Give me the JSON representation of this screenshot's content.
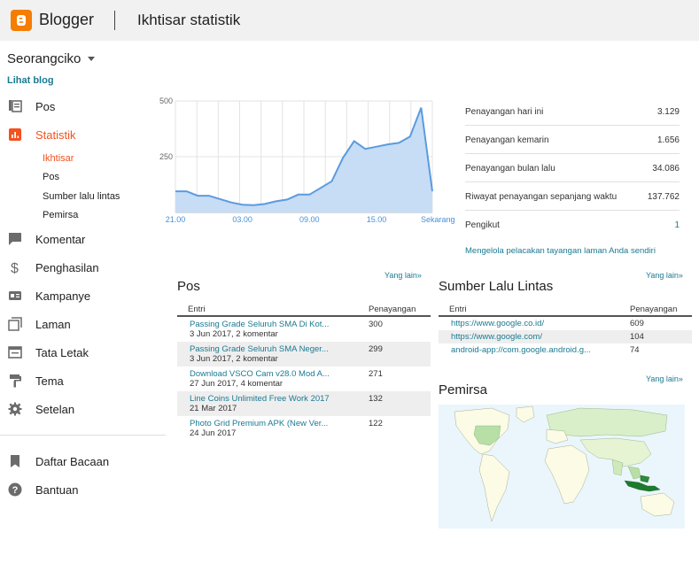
{
  "header": {
    "brand": "Blogger",
    "title": "Ikhtisar statistik"
  },
  "sidebar": {
    "blog_name": "Seorangciko",
    "view_blog": "Lihat blog",
    "items": [
      {
        "label": "Pos",
        "icon": "posts-icon"
      },
      {
        "label": "Statistik",
        "icon": "stats-icon"
      },
      {
        "label": "Komentar",
        "icon": "comment-icon"
      },
      {
        "label": "Penghasilan",
        "icon": "dollar-icon"
      },
      {
        "label": "Kampanye",
        "icon": "campaign-icon"
      },
      {
        "label": "Laman",
        "icon": "pages-icon"
      },
      {
        "label": "Tata Letak",
        "icon": "layout-icon"
      },
      {
        "label": "Tema",
        "icon": "theme-icon"
      },
      {
        "label": "Setelan",
        "icon": "gear-icon"
      },
      {
        "label": "Daftar Bacaan",
        "icon": "bookmark-icon"
      },
      {
        "label": "Bantuan",
        "icon": "help-icon"
      }
    ],
    "sub_items": [
      "Ikhtisar",
      "Pos",
      "Sumber lalu lintas",
      "Pemirsa"
    ]
  },
  "chart_data": {
    "type": "area",
    "x_tick_labels": [
      "21.00",
      "03.00",
      "09.00",
      "15.00",
      "Sekarang"
    ],
    "y_ticks": [
      250,
      500
    ],
    "ylim": [
      0,
      500
    ],
    "values": [
      95,
      95,
      75,
      75,
      60,
      45,
      35,
      33,
      38,
      50,
      58,
      80,
      80,
      110,
      140,
      245,
      320,
      285,
      295,
      305,
      312,
      340,
      470,
      95
    ],
    "color": "#5b9bdf",
    "fill": "#c7dcf5"
  },
  "stats": [
    {
      "label": "Penayangan hari ini",
      "value": "3.129"
    },
    {
      "label": "Penayangan kemarin",
      "value": "1.656"
    },
    {
      "label": "Penayangan bulan lalu",
      "value": "34.086"
    },
    {
      "label": "Riwayat penayangan sepanjang waktu",
      "value": "137.762"
    },
    {
      "label": "Pengikut",
      "value": "1"
    }
  ],
  "manage_link": "Mengelola pelacakan tayangan laman Anda sendiri",
  "more_label": "Yang lain»",
  "posts": {
    "title": "Pos",
    "col_entry": "Entri",
    "col_views": "Penayangan",
    "rows": [
      {
        "title": "Passing Grade Seluruh SMA Di Kot...",
        "meta": "3 Jun 2017, 2 komentar",
        "views": "300"
      },
      {
        "title": "Passing Grade Seluruh SMA Neger...",
        "meta": "3 Jun 2017, 2 komentar",
        "views": "299"
      },
      {
        "title": "Download VSCO Cam v28.0 Mod A...",
        "meta": "27 Jun 2017, 4 komentar",
        "views": "271"
      },
      {
        "title": "Line Coins Unlimited Free Work 2017",
        "meta": "21 Mar 2017",
        "views": "132"
      },
      {
        "title": "Photo Grid Premium APK (New Ver...",
        "meta": "24 Jun 2017",
        "views": "122"
      }
    ]
  },
  "sources": {
    "title": "Sumber Lalu Lintas",
    "col_entry": "Entri",
    "col_views": "Penayangan",
    "rows": [
      {
        "url": "https://www.google.co.id/",
        "views": "609"
      },
      {
        "url": "https://www.google.com/",
        "views": "104"
      },
      {
        "url": "android-app://com.google.android.g...",
        "views": "74"
      }
    ]
  },
  "audience": {
    "title": "Pemirsa"
  }
}
